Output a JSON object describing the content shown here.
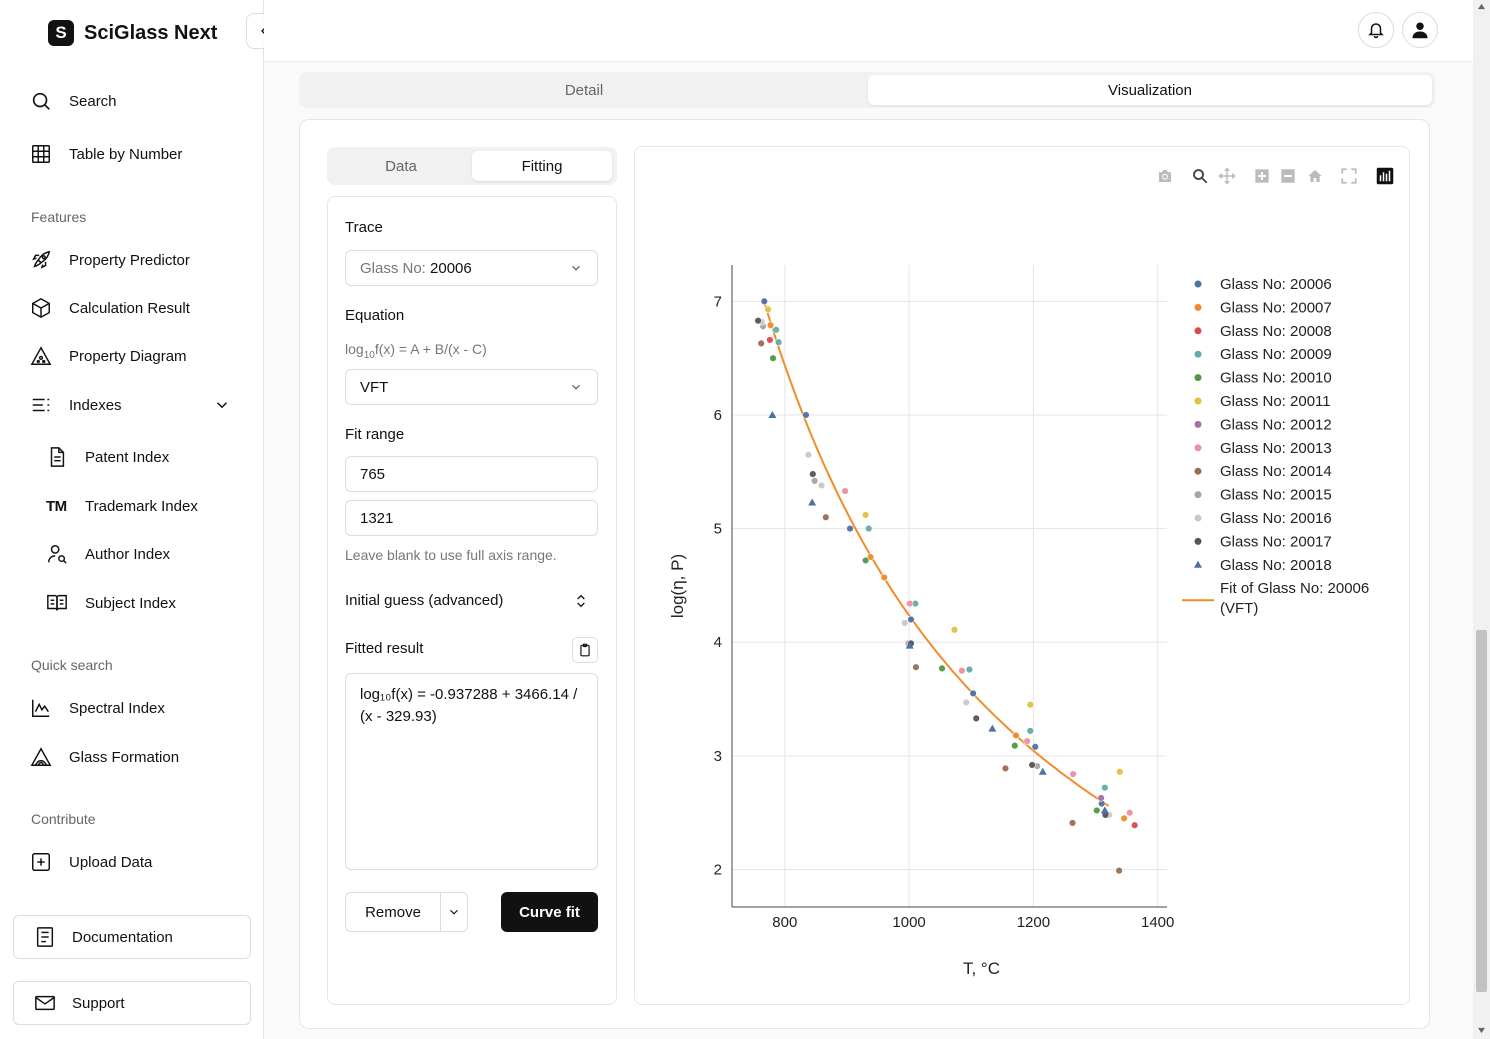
{
  "app": {
    "name": "SciGlass Next",
    "logo_letter": "S"
  },
  "sidebar": {
    "search": "Search",
    "table_by_number": "Table by Number",
    "features_label": "Features",
    "property_predictor": "Property Predictor",
    "calculation_result": "Calculation Result",
    "property_diagram": "Property Diagram",
    "indexes": "Indexes",
    "patent_index": "Patent Index",
    "trademark_index": "Trademark Index",
    "trademark_glyph": "TM",
    "author_index": "Author Index",
    "subject_index": "Subject Index",
    "quick_search_label": "Quick search",
    "spectral_index": "Spectral Index",
    "glass_formation": "Glass Formation",
    "contribute_label": "Contribute",
    "upload_data": "Upload Data",
    "documentation": "Documentation",
    "support": "Support"
  },
  "tabs": {
    "detail": "Detail",
    "visualization": "Visualization",
    "active": "visualization"
  },
  "subtabs": {
    "data": "Data",
    "fitting": "Fitting",
    "active": "fitting"
  },
  "fitting": {
    "trace_label": "Trace",
    "trace_prefix": "Glass No: ",
    "trace_value": "20006",
    "equation_label": "Equation",
    "equation_pre": "log",
    "equation_sub": "10",
    "equation_post": "f(x) = A + B/(x - C)",
    "equation_value": "VFT",
    "fit_range_label": "Fit range",
    "range_min": "765",
    "range_max": "1321",
    "range_hint": "Leave blank to use full axis range.",
    "initial_guess_label": "Initial guess (advanced)",
    "fitted_result_label": "Fitted result",
    "fitted_result": "log₁₀f(x) = -0.937288 + 3466.14 / (x - 329.93)",
    "remove_label": "Remove",
    "curve_fit_label": "Curve fit"
  },
  "chart_data": {
    "type": "scatter",
    "xlabel": "T, °C",
    "ylabel": "log(η, P)",
    "xlim": [
      715,
      1415
    ],
    "ylim": [
      1.67,
      7.32
    ],
    "x_ticks": [
      800,
      1000,
      1200,
      1400
    ],
    "y_ticks": [
      2,
      3,
      4,
      5,
      6,
      7
    ],
    "grid": true,
    "legend_position": "right",
    "fit": {
      "name": "Fit of Glass No: 20006",
      "name_line2": "(VFT)",
      "A": -0.937288,
      "B": 3466.14,
      "C": 329.93,
      "x_range": [
        765,
        1321
      ],
      "color": "#f08c2c"
    },
    "series": [
      {
        "name": "Glass No: 20006",
        "color": "#4c72a4",
        "marker": "circle",
        "points": [
          [
            767,
            7.0
          ],
          [
            834,
            6.0
          ],
          [
            905,
            5.0
          ],
          [
            1003,
            4.2
          ],
          [
            1103,
            3.55
          ],
          [
            1203,
            3.08
          ],
          [
            1310,
            2.58
          ]
        ]
      },
      {
        "name": "Glass No: 20007",
        "color": "#f08c2c",
        "marker": "circle",
        "points": [
          [
            777,
            6.79
          ],
          [
            938,
            4.75
          ],
          [
            960,
            4.57
          ],
          [
            1172,
            3.18
          ],
          [
            1346,
            2.45
          ]
        ]
      },
      {
        "name": "Glass No: 20008",
        "color": "#e0474b",
        "marker": "circle",
        "points": [
          [
            776,
            6.66
          ],
          [
            1363,
            2.39
          ]
        ]
      },
      {
        "name": "Glass No: 20009",
        "color": "#5fada6",
        "marker": "circle",
        "points": [
          [
            786,
            6.75
          ],
          [
            790,
            6.64
          ],
          [
            935,
            5.0
          ],
          [
            1010,
            4.34
          ],
          [
            1097,
            3.76
          ],
          [
            1195,
            3.22
          ],
          [
            1315,
            2.72
          ]
        ]
      },
      {
        "name": "Glass No: 20010",
        "color": "#4f9a41",
        "marker": "circle",
        "points": [
          [
            781,
            6.5
          ],
          [
            930,
            4.72
          ],
          [
            1053,
            3.77
          ],
          [
            1170,
            3.09
          ],
          [
            1302,
            2.52
          ]
        ]
      },
      {
        "name": "Glass No: 20011",
        "color": "#e0c13e",
        "marker": "circle",
        "points": [
          [
            773,
            6.93
          ],
          [
            930,
            5.12
          ],
          [
            1073,
            4.11
          ],
          [
            1195,
            3.45
          ],
          [
            1339,
            2.86
          ]
        ]
      },
      {
        "name": "Glass No: 20012",
        "color": "#a86fa0",
        "marker": "circle",
        "points": [
          [
            1309,
            2.63
          ]
        ]
      },
      {
        "name": "Glass No: 20013",
        "color": "#ef8f9f",
        "marker": "circle",
        "points": [
          [
            897,
            5.33
          ],
          [
            1001,
            4.34
          ],
          [
            1085,
            3.75
          ],
          [
            1190,
            3.13
          ],
          [
            1264,
            2.84
          ],
          [
            1355,
            2.5
          ]
        ]
      },
      {
        "name": "Glass No: 20014",
        "color": "#9b6c55",
        "marker": "circle",
        "points": [
          [
            762,
            6.63
          ],
          [
            866,
            5.1
          ],
          [
            1011,
            3.78
          ],
          [
            1155,
            2.89
          ],
          [
            1263,
            2.41
          ],
          [
            1338,
            1.99
          ]
        ]
      },
      {
        "name": "Glass No: 20015",
        "color": "#a8a2a0",
        "marker": "circle",
        "points": [
          [
            765,
            6.78
          ],
          [
            848,
            5.42
          ],
          [
            999,
            3.99
          ],
          [
            1206,
            2.91
          ]
        ]
      },
      {
        "name": "Glass No: 20016",
        "color": "#c9c9c9",
        "marker": "circle",
        "points": [
          [
            763,
            6.82
          ],
          [
            838,
            5.65
          ],
          [
            859,
            5.38
          ],
          [
            993,
            4.17
          ],
          [
            1092,
            3.47
          ],
          [
            1322,
            2.48
          ]
        ]
      },
      {
        "name": "Glass No: 20017",
        "color": "#555555",
        "marker": "circle",
        "points": [
          [
            757,
            6.83
          ],
          [
            845,
            5.48
          ],
          [
            1003,
            3.99
          ],
          [
            1108,
            3.33
          ],
          [
            1198,
            2.92
          ],
          [
            1316,
            2.48
          ]
        ]
      },
      {
        "name": "Glass No: 20018",
        "color": "#4c72a4",
        "marker": "triangle",
        "points": [
          [
            780,
            6.0
          ],
          [
            844,
            5.23
          ],
          [
            1001,
            3.97
          ],
          [
            1134,
            3.24
          ],
          [
            1215,
            2.86
          ],
          [
            1315,
            2.52
          ]
        ]
      }
    ]
  }
}
